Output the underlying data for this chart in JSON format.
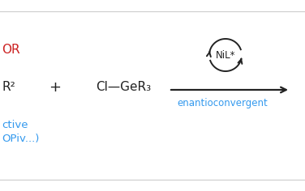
{
  "background_color": "#ffffff",
  "border_color": "#cccccc",
  "text_OR": "OR",
  "text_R2": "R²",
  "text_plus": "+",
  "text_ClGeR3": "Cl—GeR₃",
  "text_NiL": "NiL*",
  "text_enantioconvergent": "enantioconvergent",
  "text_red": "#cc2222",
  "text_blue": "#3399ee",
  "text_black": "#222222",
  "arrow_color": "#222222",
  "fig_width": 3.76,
  "fig_height": 2.36,
  "dpi": 100
}
